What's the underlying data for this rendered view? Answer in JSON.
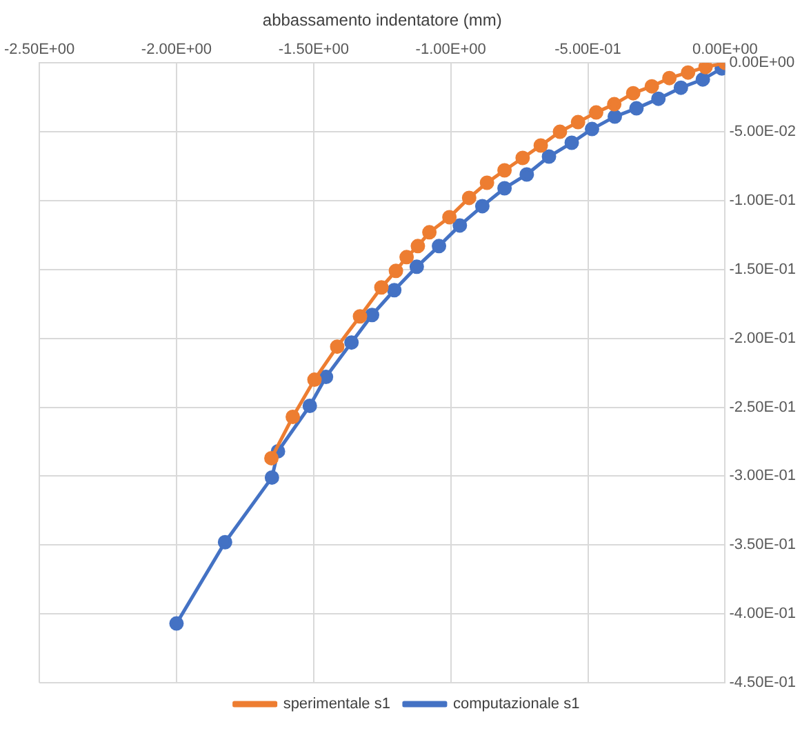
{
  "chart_data": {
    "type": "line",
    "xlabel": "abbassamento indentatore (mm)",
    "xlim": [
      -2.5,
      0
    ],
    "xticks": [
      {
        "value": -2.5,
        "label": "-2.50E+00"
      },
      {
        "value": -2,
        "label": "-2.00E+00"
      },
      {
        "value": -1.5,
        "label": "-1.50E+00"
      },
      {
        "value": -1,
        "label": "-1.00E+00"
      },
      {
        "value": -0.5,
        "label": "-5.00E-01"
      },
      {
        "value": 0,
        "label": "0.00E+00"
      }
    ],
    "ylim": [
      -0.45,
      0
    ],
    "yticks": [
      {
        "value": 0,
        "label": "0.00E+00"
      },
      {
        "value": -0.05,
        "label": "-5.00E-02"
      },
      {
        "value": -0.1,
        "label": "-1.00E-01"
      },
      {
        "value": -0.15,
        "label": "-1.50E-01"
      },
      {
        "value": -0.2,
        "label": "-2.00E-01"
      },
      {
        "value": -0.25,
        "label": "-2.50E-01"
      },
      {
        "value": -0.3,
        "label": "-3.00E-01"
      },
      {
        "value": -0.35,
        "label": "-3.50E-01"
      },
      {
        "value": -0.4,
        "label": "-4.00E-01"
      },
      {
        "value": -0.45,
        "label": "-4.50E-01"
      }
    ],
    "grid": true,
    "legend": "bottom",
    "marker": "circle",
    "line_style": "solid",
    "series": [
      {
        "name": "sperimentale s1",
        "color": "#ed7d31",
        "x": [
          0,
          -0.071,
          -0.135,
          -0.203,
          -0.267,
          -0.335,
          -0.404,
          -0.47,
          -0.536,
          -0.602,
          -0.672,
          -0.738,
          -0.804,
          -0.868,
          -0.933,
          -1.005,
          -1.078,
          -1.12,
          -1.161,
          -1.2,
          -1.253,
          -1.331,
          -1.414,
          -1.497,
          -1.576,
          -1.654
        ],
        "values": [
          0,
          -0.003,
          -0.007,
          -0.011,
          -0.017,
          -0.022,
          -0.03,
          -0.036,
          -0.043,
          -0.05,
          -0.06,
          -0.069,
          -0.078,
          -0.087,
          -0.098,
          -0.112,
          -0.123,
          -0.133,
          -0.141,
          -0.151,
          -0.163,
          -0.184,
          -0.206,
          -0.23,
          -0.257,
          -0.287
        ]
      },
      {
        "name": "computazionale s1",
        "color": "#4472c4",
        "x": [
          -0.012,
          -0.081,
          -0.161,
          -0.243,
          -0.323,
          -0.402,
          -0.485,
          -0.559,
          -0.642,
          -0.723,
          -0.804,
          -0.885,
          -0.967,
          -1.043,
          -1.124,
          -1.206,
          -1.287,
          -1.362,
          -1.455,
          -1.514,
          -1.63,
          -1.652,
          -1.823,
          -2.0
        ],
        "values": [
          -0.004,
          -0.012,
          -0.018,
          -0.026,
          -0.033,
          -0.039,
          -0.048,
          -0.058,
          -0.068,
          -0.081,
          -0.091,
          -0.104,
          -0.118,
          -0.133,
          -0.148,
          -0.165,
          -0.183,
          -0.203,
          -0.228,
          -0.249,
          -0.282,
          -0.301,
          -0.348,
          -0.407
        ]
      }
    ]
  }
}
